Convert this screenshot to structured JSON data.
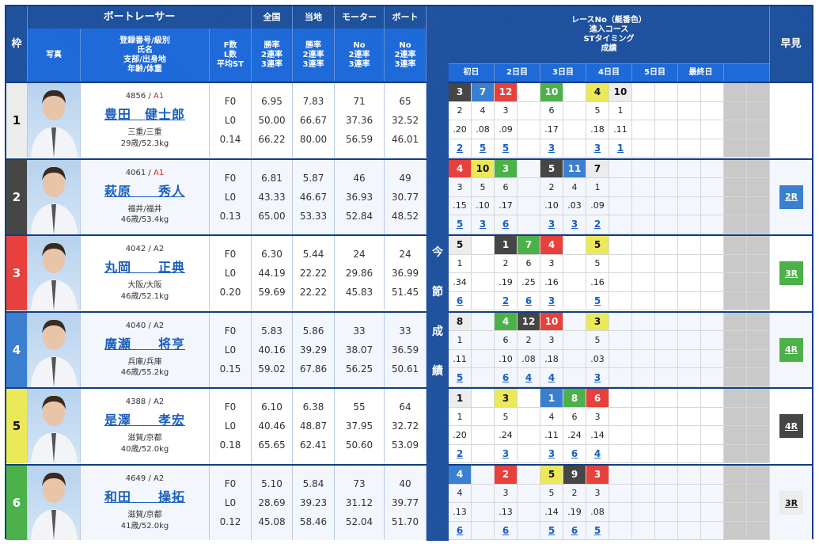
{
  "header": {
    "waku": "枠",
    "boat_racer": "ボートレーサー",
    "photo": "写真",
    "profile_lines": [
      "登録番号/級別",
      "氏名",
      "支部/出身地",
      "年齢/体重"
    ],
    "flst_lines": [
      "F数",
      "L数",
      "平均ST"
    ],
    "national": {
      "title": "全国",
      "lines": [
        "勝率",
        "2連率",
        "3連率"
      ]
    },
    "local": {
      "title": "当地",
      "lines": [
        "勝率",
        "2連率",
        "3連率"
      ]
    },
    "motor": {
      "title": "モーター",
      "lines": [
        "No",
        "2連率",
        "3連率"
      ]
    },
    "boat": {
      "title": "ボート",
      "lines": [
        "No",
        "2連率",
        "3連率"
      ]
    },
    "race_info_lines": [
      "レースNo（艇番色）",
      "進入コース",
      "STタイミング",
      "成績"
    ],
    "days": [
      "初日",
      "2日目",
      "3日目",
      "4日目",
      "5日目",
      "最終日",
      ""
    ],
    "hayami": "早見"
  },
  "side_strip": [
    "今",
    "節",
    "成",
    "績"
  ],
  "racers": [
    {
      "waku": "1",
      "reg_no": "4856",
      "class": "A1",
      "name": "豊田　健士郎",
      "branch": "三重/三重",
      "age_weight": "29歳/52.3kg",
      "f": "F0",
      "l": "L0",
      "avg_st": "0.14",
      "national": [
        "6.95",
        "50.00",
        "66.22"
      ],
      "local": [
        "7.83",
        "66.67",
        "80.00"
      ],
      "motor": [
        "71",
        "37.36",
        "56.59"
      ],
      "boat": [
        "65",
        "32.52",
        "46.01"
      ],
      "races": [
        {
          "slot": 0,
          "race": "3",
          "color": 2,
          "course": "2",
          "st": ".20",
          "rank": "2"
        },
        {
          "slot": 1,
          "race": "7",
          "color": 4,
          "course": "4",
          "st": ".08",
          "rank": "5"
        },
        {
          "slot": 2,
          "race": "12",
          "color": 3,
          "course": "3",
          "st": ".09",
          "rank": "5"
        },
        {
          "slot": 4,
          "race": "10",
          "color": 6,
          "course": "6",
          "st": ".17",
          "rank": "3"
        },
        {
          "slot": 6,
          "race": "4",
          "color": 5,
          "course": "5",
          "st": ".18",
          "rank": "3"
        },
        {
          "slot": 7,
          "race": "10",
          "color": 1,
          "course": "1",
          "st": ".11",
          "rank": "1"
        }
      ],
      "hayami": null
    },
    {
      "waku": "2",
      "reg_no": "4061",
      "class": "A1",
      "name": "萩原　　秀人",
      "branch": "福井/福井",
      "age_weight": "46歳/53.4kg",
      "f": "F0",
      "l": "L0",
      "avg_st": "0.13",
      "national": [
        "6.81",
        "43.33",
        "65.00"
      ],
      "local": [
        "5.87",
        "46.67",
        "53.33"
      ],
      "motor": [
        "46",
        "36.93",
        "52.84"
      ],
      "boat": [
        "49",
        "30.77",
        "48.52"
      ],
      "races": [
        {
          "slot": 0,
          "race": "4",
          "color": 3,
          "course": "3",
          "st": ".15",
          "rank": "5"
        },
        {
          "slot": 1,
          "race": "10",
          "color": 5,
          "course": "5",
          "st": ".10",
          "rank": "3"
        },
        {
          "slot": 2,
          "race": "3",
          "color": 6,
          "course": "6",
          "st": ".17",
          "rank": "6"
        },
        {
          "slot": 4,
          "race": "5",
          "color": 2,
          "course": "2",
          "st": ".10",
          "rank": "3"
        },
        {
          "slot": 5,
          "race": "11",
          "color": 4,
          "course": "4",
          "st": ".03",
          "rank": "3"
        },
        {
          "slot": 6,
          "race": "7",
          "color": 1,
          "course": "1",
          "st": ".09",
          "rank": "2"
        }
      ],
      "hayami": {
        "label": "2R",
        "color": 4
      }
    },
    {
      "waku": "3",
      "reg_no": "4042",
      "class": "A2",
      "name": "丸岡　　正典",
      "branch": "大阪/大阪",
      "age_weight": "46歳/52.1kg",
      "f": "F0",
      "l": "L0",
      "avg_st": "0.20",
      "national": [
        "6.30",
        "44.19",
        "59.69"
      ],
      "local": [
        "5.44",
        "22.22",
        "22.22"
      ],
      "motor": [
        "24",
        "29.86",
        "45.83"
      ],
      "boat": [
        "24",
        "36.99",
        "51.45"
      ],
      "races": [
        {
          "slot": 0,
          "race": "5",
          "color": 1,
          "course": "1",
          "st": ".34",
          "rank": "6"
        },
        {
          "slot": 2,
          "race": "1",
          "color": 2,
          "course": "2",
          "st": ".19",
          "rank": "2"
        },
        {
          "slot": 3,
          "race": "7",
          "color": 6,
          "course": "6",
          "st": ".25",
          "rank": "6"
        },
        {
          "slot": 4,
          "race": "4",
          "color": 3,
          "course": "3",
          "st": ".16",
          "rank": "3"
        },
        {
          "slot": 6,
          "race": "5",
          "color": 5,
          "course": "5",
          "st": ".16",
          "rank": "5"
        }
      ],
      "hayami": {
        "label": "3R",
        "color": 6
      }
    },
    {
      "waku": "4",
      "reg_no": "4040",
      "class": "A2",
      "name": "廣瀬　　将亨",
      "branch": "兵庫/兵庫",
      "age_weight": "46歳/55.2kg",
      "f": "F0",
      "l": "L0",
      "avg_st": "0.15",
      "national": [
        "5.83",
        "40.16",
        "59.02"
      ],
      "local": [
        "5.86",
        "39.29",
        "67.86"
      ],
      "motor": [
        "33",
        "38.07",
        "56.25"
      ],
      "boat": [
        "33",
        "36.59",
        "50.61"
      ],
      "races": [
        {
          "slot": 0,
          "race": "8",
          "color": 1,
          "course": "1",
          "st": ".11",
          "rank": "5"
        },
        {
          "slot": 2,
          "race": "4",
          "color": 6,
          "course": "6",
          "st": ".10",
          "rank": "6"
        },
        {
          "slot": 3,
          "race": "12",
          "color": 2,
          "course": "2",
          "st": ".08",
          "rank": "4"
        },
        {
          "slot": 4,
          "race": "10",
          "color": 3,
          "course": "3",
          "st": ".18",
          "rank": "4"
        },
        {
          "slot": 6,
          "race": "3",
          "color": 5,
          "course": "5",
          "st": ".03",
          "rank": "3"
        }
      ],
      "hayami": {
        "label": "4R",
        "color": 6
      }
    },
    {
      "waku": "5",
      "reg_no": "4388",
      "class": "A2",
      "name": "是澤　　孝宏",
      "branch": "滋賀/京都",
      "age_weight": "40歳/52.0kg",
      "f": "F0",
      "l": "L0",
      "avg_st": "0.18",
      "national": [
        "6.10",
        "40.46",
        "65.65"
      ],
      "local": [
        "6.38",
        "48.87",
        "62.41"
      ],
      "motor": [
        "55",
        "37.95",
        "50.60"
      ],
      "boat": [
        "64",
        "32.72",
        "53.09"
      ],
      "races": [
        {
          "slot": 0,
          "race": "1",
          "color": 1,
          "course": "1",
          "st": ".20",
          "rank": "2"
        },
        {
          "slot": 2,
          "race": "3",
          "color": 5,
          "course": "5",
          "st": ".24",
          "rank": "3"
        },
        {
          "slot": 4,
          "race": "1",
          "color": 4,
          "course": "4",
          "st": ".11",
          "rank": "3"
        },
        {
          "slot": 5,
          "race": "8",
          "color": 6,
          "course": "6",
          "st": ".24",
          "rank": "6"
        },
        {
          "slot": 6,
          "race": "6",
          "color": 3,
          "course": "3",
          "st": ".14",
          "rank": "4"
        }
      ],
      "hayami": {
        "label": "4R",
        "color": 2
      }
    },
    {
      "waku": "6",
      "reg_no": "4649",
      "class": "A2",
      "name": "和田　　操拓",
      "branch": "滋賀/京都",
      "age_weight": "41歳/52.0kg",
      "f": "F0",
      "l": "L0",
      "avg_st": "0.12",
      "national": [
        "5.10",
        "28.69",
        "45.08"
      ],
      "local": [
        "5.84",
        "39.23",
        "58.46"
      ],
      "motor": [
        "73",
        "31.12",
        "52.04"
      ],
      "boat": [
        "40",
        "39.77",
        "51.70"
      ],
      "races": [
        {
          "slot": 0,
          "race": "4",
          "color": 4,
          "course": "4",
          "st": ".13",
          "rank": "6"
        },
        {
          "slot": 2,
          "race": "2",
          "color": 3,
          "course": "3",
          "st": ".13",
          "rank": "6"
        },
        {
          "slot": 4,
          "race": "5",
          "color": 5,
          "course": "5",
          "st": ".14",
          "rank": "5"
        },
        {
          "slot": 5,
          "race": "9",
          "color": 2,
          "course": "2",
          "st": ".19",
          "rank": "6"
        },
        {
          "slot": 6,
          "race": "3",
          "color": 3,
          "course": "3",
          "st": ".08",
          "rank": "5"
        }
      ],
      "hayami": {
        "label": "3R",
        "color": 1
      }
    }
  ],
  "colors": {
    "header_dark": "#1c4f9c",
    "header_bright": "#1a67d8",
    "boat_1": "#ececec",
    "boat_2": "#464646",
    "boat_3": "#e8403c",
    "boat_4": "#3b7fd0",
    "boat_5": "#ebe85a",
    "boat_6": "#4db14a",
    "link": "#1a5fc0",
    "class_a1": "#d4242c"
  }
}
